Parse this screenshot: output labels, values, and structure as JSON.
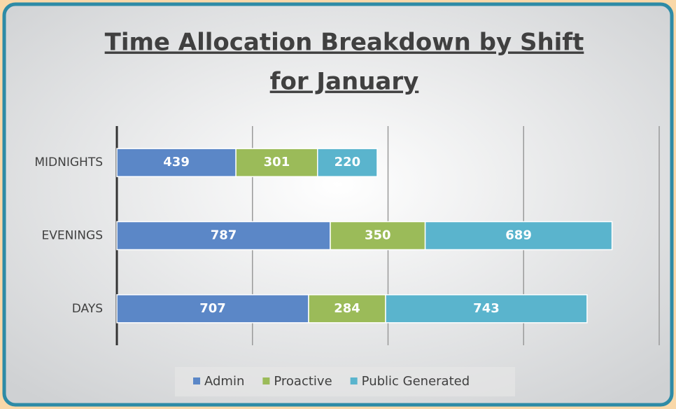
{
  "chart_data": {
    "type": "stacked-bar-horizontal",
    "title": [
      "Time Allocation Breakdown by Shift",
      "for January"
    ],
    "categories": [
      "MIDNIGHTS",
      "EVENINGS",
      "DAYS"
    ],
    "series": [
      {
        "name": "Admin",
        "color": "#5b87c7",
        "values": [
          439,
          787,
          707
        ]
      },
      {
        "name": "Proactive",
        "color": "#9bbb59",
        "values": [
          301,
          350,
          284
        ]
      },
      {
        "name": "Public Generated",
        "color": "#5ab4cd",
        "values": [
          220,
          689,
          743
        ]
      }
    ],
    "xlim": [
      0,
      2000
    ],
    "xticks": [
      0,
      500,
      1000,
      1500,
      2000
    ],
    "grid": true,
    "legend": "bottom"
  }
}
